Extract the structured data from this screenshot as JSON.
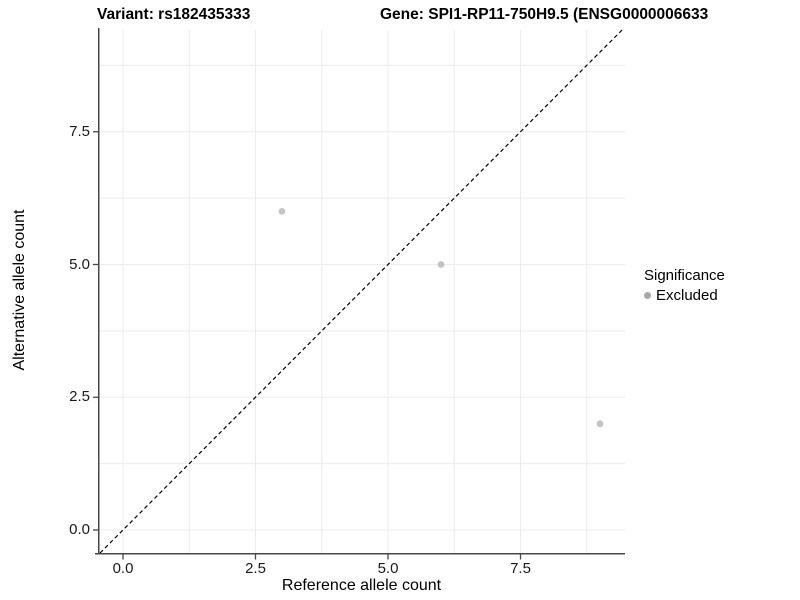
{
  "chart_data": {
    "type": "scatter",
    "title_left": "Variant: rs182435333",
    "title_right": "Gene: SPI1-RP11-750H9.5 (ENSG0000006633",
    "xlabel": "Reference allele count",
    "ylabel": "Alternative allele count",
    "x_tick_labels": [
      "0.0",
      "2.5",
      "5.0",
      "7.5"
    ],
    "y_tick_labels": [
      "0.0",
      "2.5",
      "5.0",
      "7.5"
    ],
    "x_tick_values": [
      0,
      2.5,
      5,
      7.5
    ],
    "y_tick_values": [
      0,
      2.5,
      5,
      7.5
    ],
    "xlim": [
      -0.47,
      9.47
    ],
    "ylim": [
      -0.43,
      9.42
    ],
    "grid": "major+minor",
    "points": [
      {
        "x": 3,
        "y": 6,
        "series": "Excluded"
      },
      {
        "x": 6,
        "y": 5,
        "series": "Excluded"
      },
      {
        "x": 9,
        "y": 2,
        "series": "Excluded"
      }
    ],
    "point_color": "#C4C4C4",
    "reference_line": {
      "type": "identity y=x",
      "style": "dashed",
      "color": "#000000"
    },
    "legend": {
      "position": "right",
      "title": "Significance",
      "items": [
        {
          "label": "Excluded",
          "color": "#A8A8A8",
          "marker": "dot"
        }
      ]
    },
    "colors": {
      "background": "#FFFFFF",
      "gridline": "#ECECEC",
      "axis_line": "#474747",
      "text": "#000000"
    }
  }
}
